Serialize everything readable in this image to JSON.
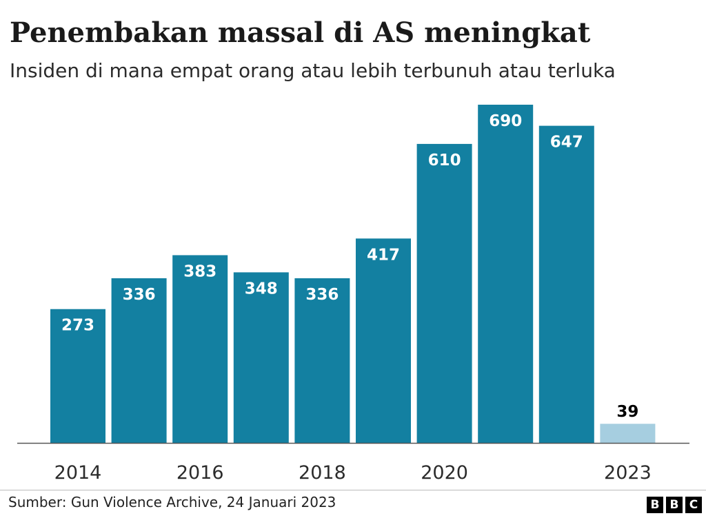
{
  "header": {
    "title": "Penembakan massal di AS meningkat",
    "subtitle": "Insiden di mana empat orang atau lebih terbunuh atau terluka"
  },
  "footer": {
    "source": "Sumber: Gun Violence Archive, 24 Januari 2023",
    "logo_letters": [
      "B",
      "B",
      "C"
    ]
  },
  "colors": {
    "bar": "#1380A1",
    "bar_partial": "#A6CEE0",
    "label_inside": "#FFFFFF",
    "label_outside": "#000000",
    "axis": "#555555"
  },
  "chart_data": {
    "type": "bar",
    "title": "Penembakan massal di AS meningkat",
    "subtitle": "Insiden di mana empat orang atau lebih terbunuh atau terluka",
    "categories": [
      "2014",
      "2015",
      "2016",
      "2017",
      "2018",
      "2019",
      "2020",
      "2021",
      "2022",
      "2023"
    ],
    "values": [
      273,
      336,
      383,
      348,
      336,
      417,
      610,
      690,
      647,
      39
    ],
    "x_tick_labels": [
      "2014",
      "2016",
      "2018",
      "2020",
      "2023"
    ],
    "highlight_partial": [
      "2023"
    ],
    "ylim": [
      0,
      700
    ],
    "grid": false,
    "legend": "none",
    "source": "Sumber: Gun Violence Archive, 24 Januari 2023"
  }
}
